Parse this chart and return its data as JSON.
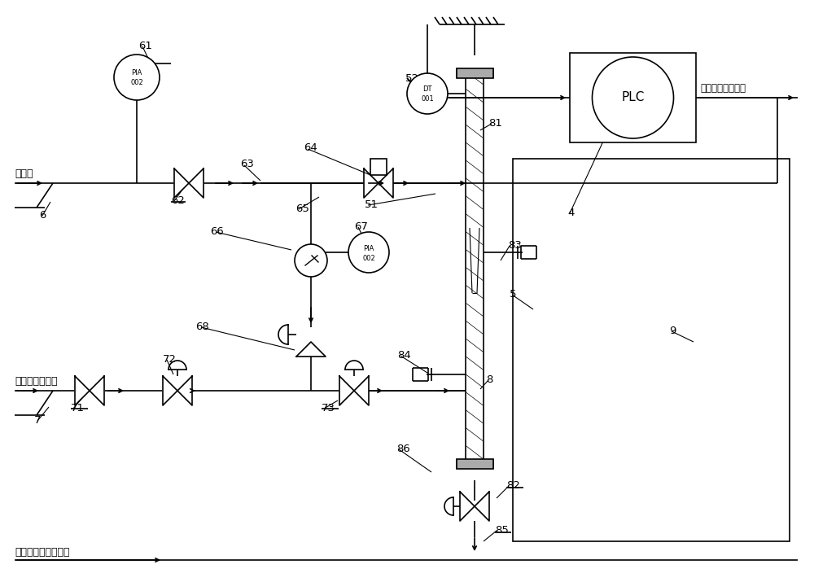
{
  "bg_color": "#ffffff",
  "line_color": "#000000",
  "fig_width": 10.0,
  "fig_height": 7.15,
  "label_process_water": "工艺水",
  "label_from_system": "来自系统的渣酸",
  "label_return_system": "渣酸及洗水返回系统",
  "label_online": "在线传输分析结果",
  "label_PLC": "PLC",
  "label_DT_top": "DT",
  "label_DT_bot": "001",
  "label_PIA_top": "PIA",
  "label_PIA_bot": "002"
}
